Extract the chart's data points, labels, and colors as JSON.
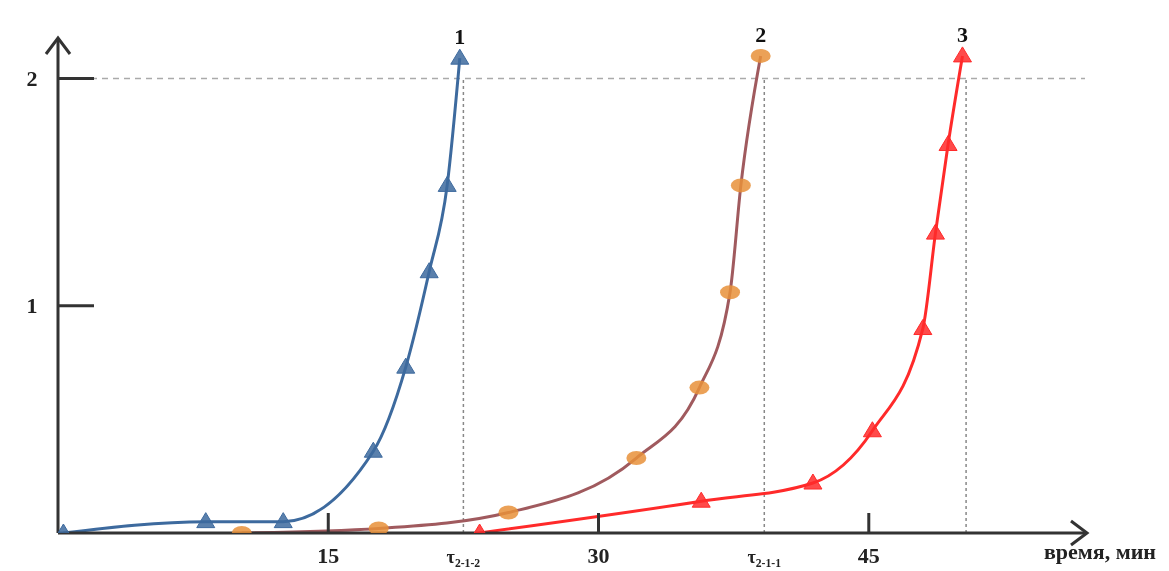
{
  "chart_data": {
    "type": "line",
    "xlabel": "время, мин",
    "xlim": [
      0,
      57
    ],
    "ylim": [
      0,
      2.17
    ],
    "xticks": [
      15,
      {
        "value": 22.5,
        "label": "τ$_{2-1-2}$"
      },
      30,
      {
        "value": 39.2,
        "label": "τ$_{2-1-1}$"
      },
      45
    ],
    "yticks": [
      1,
      2
    ],
    "series": [
      {
        "name": "1",
        "color": "#3d6a9e",
        "marker": "triangle",
        "x": [
          0.3,
          8.2,
          12.5,
          17.5,
          19.3,
          20.6,
          21.6,
          22.3
        ],
        "values": [
          0,
          0.05,
          0.05,
          0.36,
          0.73,
          1.15,
          1.53,
          2.09
        ]
      },
      {
        "name": "2",
        "color": "#a05a5e",
        "colors": [
          "#e8913a",
          "#e8913a",
          "#e8913a",
          "#e8913a",
          "#e8913a",
          "#e8913a",
          "#e8913a",
          "#e8913a"
        ],
        "marker": "circle",
        "x": [
          10.2,
          17.8,
          25,
          32.1,
          35.6,
          37.3,
          37.9,
          39
        ],
        "values": [
          0,
          0.02,
          0.09,
          0.33,
          0.64,
          1.06,
          1.53,
          2.1
        ]
      },
      {
        "name": "3",
        "color": "#ff2a2a",
        "marker": "triangle",
        "x": [
          23.4,
          35.7,
          41.9,
          45.2,
          48,
          48.7,
          49.4,
          50.2
        ],
        "values": [
          0,
          0.14,
          0.22,
          0.45,
          0.9,
          1.32,
          1.71,
          2.1
        ]
      }
    ],
    "ref_lines": [
      {
        "axis": "y",
        "value": 2,
        "color": "#aaaaaa",
        "line_style": "dashed"
      },
      {
        "axis": "x",
        "value": 22.5,
        "color": "#888888",
        "line_style": "dotted"
      },
      {
        "axis": "x",
        "value": 39.2,
        "color": "#888888",
        "line_style": "dotted"
      },
      {
        "axis": "x",
        "value": 50.4,
        "color": "#888888",
        "line_style": "dotted"
      }
    ]
  }
}
